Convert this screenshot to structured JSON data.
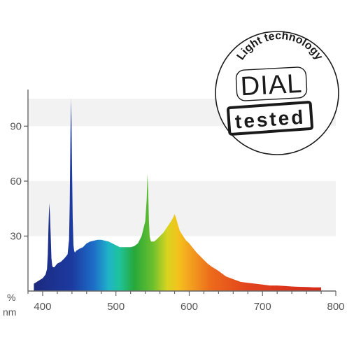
{
  "chart_data": {
    "type": "area",
    "x_unit": "nm",
    "y_unit": "%",
    "xlim": [
      380,
      800
    ],
    "ylim": [
      0,
      110
    ],
    "x_ticks": [
      400,
      500,
      600,
      700,
      800
    ],
    "y_ticks": [
      30,
      60,
      90
    ],
    "grid": "alternating horizontal bands",
    "legend": "none",
    "series": [
      {
        "x": [
          388,
          392,
          396,
          400,
          404,
          406,
          407,
          408,
          409,
          410,
          411,
          412,
          413,
          414,
          416,
          420,
          425,
          430,
          434,
          436,
          437,
          438,
          439,
          440,
          441,
          442,
          443,
          444,
          446,
          450,
          455,
          460,
          465,
          470,
          475,
          480,
          485,
          490,
          495,
          500,
          505,
          510,
          515,
          520,
          525,
          530,
          535,
          540,
          542,
          543,
          544,
          545,
          546,
          547,
          548,
          549,
          550,
          552,
          555,
          560,
          565,
          570,
          575,
          578,
          580,
          582,
          584,
          587,
          590,
          595,
          600,
          605,
          610,
          615,
          620,
          625,
          630,
          640,
          650,
          660,
          670,
          680,
          690,
          700,
          710,
          720,
          730,
          740,
          750,
          760,
          770,
          780
        ],
        "y": [
          4,
          5,
          6,
          7,
          9,
          12,
          20,
          35,
          48,
          42,
          30,
          18,
          14,
          13,
          13,
          15,
          16,
          18,
          20,
          28,
          48,
          88,
          105,
          70,
          40,
          25,
          22,
          21,
          22,
          23,
          24,
          26,
          27,
          27.5,
          28,
          28,
          27.5,
          27,
          26,
          25,
          24,
          24,
          24,
          24,
          24.5,
          26,
          30,
          38,
          50,
          64,
          55,
          38,
          30,
          28,
          27,
          27,
          27,
          27,
          28,
          30,
          32,
          35,
          38,
          40,
          42,
          40,
          37,
          33,
          31,
          28,
          26,
          23.5,
          21,
          19,
          17,
          15,
          13.5,
          11,
          8,
          6.5,
          5,
          4.5,
          4,
          3.5,
          3,
          3,
          2.8,
          2.5,
          2.3,
          2.2,
          2,
          2
        ]
      }
    ],
    "color_stops": [
      {
        "nm": 390,
        "color": "#1c2a80"
      },
      {
        "nm": 440,
        "color": "#1c3aa0"
      },
      {
        "nm": 470,
        "color": "#1d6ec8"
      },
      {
        "nm": 490,
        "color": "#1fb4c8"
      },
      {
        "nm": 505,
        "color": "#1ec39a"
      },
      {
        "nm": 525,
        "color": "#27a83a"
      },
      {
        "nm": 550,
        "color": "#6abf2e"
      },
      {
        "nm": 570,
        "color": "#d9d41f"
      },
      {
        "nm": 585,
        "color": "#f4c21c"
      },
      {
        "nm": 605,
        "color": "#f29a1e"
      },
      {
        "nm": 630,
        "color": "#ec6a1c"
      },
      {
        "nm": 680,
        "color": "#e2431c"
      },
      {
        "nm": 780,
        "color": "#d42a1c"
      }
    ]
  },
  "axis": {
    "y_unit_label": "%",
    "x_unit_label": "nm"
  },
  "stamp": {
    "arc_text": "Light technology",
    "main_text": "DIAL",
    "badge_text": "tested"
  },
  "colors": {
    "axis": "#666666",
    "band": "#f2f2f2",
    "stamp_ink": "#1a1a1a"
  }
}
